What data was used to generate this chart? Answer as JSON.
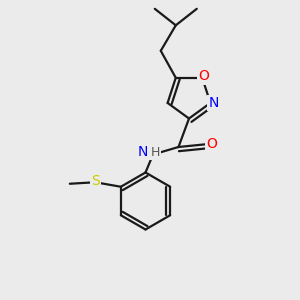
{
  "background_color": "#ebebeb",
  "bond_color": "#1a1a1a",
  "bond_width": 1.6,
  "atom_colors": {
    "O": "#ff0000",
    "N": "#0000ff",
    "S": "#cccc00",
    "C": "#1a1a1a",
    "H": "#555555"
  },
  "font_size": 9,
  "fig_size": [
    3.0,
    3.0
  ],
  "dpi": 100,
  "xlim": [
    0,
    10
  ],
  "ylim": [
    0,
    10
  ]
}
